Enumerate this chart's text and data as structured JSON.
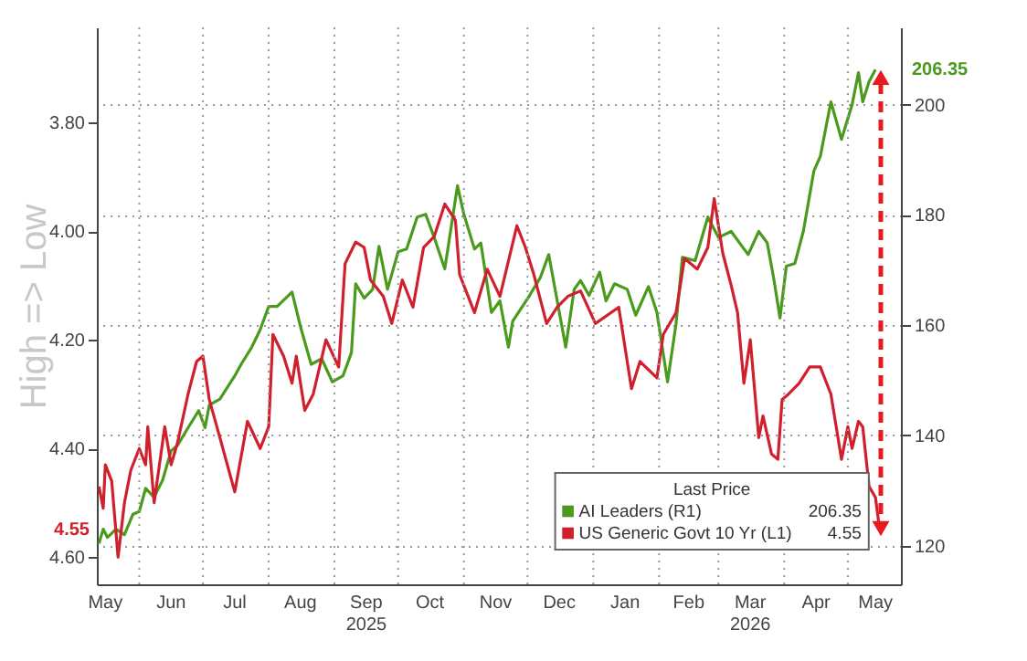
{
  "chart_data": {
    "type": "line",
    "ylabel": "High => Low",
    "legend_title": "Last Price",
    "legend": "bottom right",
    "grid": true,
    "xlim": [
      "2025-05-12",
      "2026-05-26"
    ],
    "xticks": [
      {
        "value": "2025-05-16",
        "label": "May"
      },
      {
        "value": "2025-06-01",
        "label": null
      },
      {
        "value": "2025-06-16",
        "label": "Jun"
      },
      {
        "value": "2025-07-01",
        "label": null
      },
      {
        "value": "2025-07-16",
        "label": "Jul"
      },
      {
        "value": "2025-08-01",
        "label": null
      },
      {
        "value": "2025-08-16",
        "label": "Aug"
      },
      {
        "value": "2025-09-01",
        "label": null
      },
      {
        "value": "2025-09-16",
        "label": "Sep\n2025"
      },
      {
        "value": "2025-10-01",
        "label": null
      },
      {
        "value": "2025-10-16",
        "label": "Oct"
      },
      {
        "value": "2025-11-01",
        "label": null
      },
      {
        "value": "2025-11-16",
        "label": "Nov"
      },
      {
        "value": "2025-12-01",
        "label": null
      },
      {
        "value": "2025-12-16",
        "label": "Dec"
      },
      {
        "value": "2026-01-01",
        "label": null
      },
      {
        "value": "2026-01-16",
        "label": "Jan"
      },
      {
        "value": "2026-02-01",
        "label": null
      },
      {
        "value": "2026-02-15",
        "label": "Feb"
      },
      {
        "value": "2026-03-01",
        "label": null
      },
      {
        "value": "2026-03-16",
        "label": "Mar\n2026"
      },
      {
        "value": "2026-04-01",
        "label": null
      },
      {
        "value": "2026-04-16",
        "label": "Apr"
      },
      {
        "value": "2026-05-01",
        "label": null
      },
      {
        "value": "2026-05-14",
        "label": "May"
      }
    ],
    "ylim": [
      4.65,
      3.625
    ],
    "yticks": [
      {
        "value": 3.8,
        "label": "3.80"
      },
      {
        "value": 4.0,
        "label": "4.00"
      },
      {
        "value": 4.2,
        "label": "4.20"
      },
      {
        "value": 4.4,
        "label": "4.40"
      },
      {
        "value": 4.6,
        "label": "4.60"
      }
    ],
    "y2lim": [
      113,
      214
    ],
    "y2ticks": [
      120,
      140,
      160,
      180,
      200
    ],
    "annotations": [
      "206.35",
      "4.55"
    ],
    "series": [
      {
        "name": "AI Leaders (R1)",
        "color": "#4a9a1e",
        "axis": "y2",
        "x": [
          "2025-05-13",
          "2025-05-15",
          "2025-05-17",
          "2025-05-21",
          "2025-05-25",
          "2025-05-29",
          "2025-06-01",
          "2025-06-04",
          "2025-06-08",
          "2025-06-12",
          "2025-06-16",
          "2025-06-19",
          "2025-06-24",
          "2025-06-29",
          "2025-07-02",
          "2025-07-04",
          "2025-07-09",
          "2025-07-16",
          "2025-07-19",
          "2025-07-24",
          "2025-07-28",
          "2025-08-01",
          "2025-08-05",
          "2025-08-12",
          "2025-08-16",
          "2025-08-21",
          "2025-08-26",
          "2025-08-31",
          "2025-09-05",
          "2025-09-09",
          "2025-09-11",
          "2025-09-15",
          "2025-09-19",
          "2025-09-22",
          "2025-09-26",
          "2025-10-01",
          "2025-10-05",
          "2025-10-10",
          "2025-10-14",
          "2025-10-18",
          "2025-10-23",
          "2025-10-29",
          "2025-11-01",
          "2025-11-06",
          "2025-11-09",
          "2025-11-14",
          "2025-11-18",
          "2025-11-22",
          "2025-11-24",
          "2025-12-02",
          "2025-12-07",
          "2025-12-11",
          "2025-12-15",
          "2025-12-19",
          "2025-12-23",
          "2025-12-26",
          "2025-12-30",
          "2026-01-04",
          "2026-01-07",
          "2026-01-11",
          "2026-01-17",
          "2026-01-21",
          "2026-01-27",
          "2026-01-31",
          "2026-02-05",
          "2026-02-09",
          "2026-02-12",
          "2026-02-18",
          "2026-02-24",
          "2026-03-01",
          "2026-03-07",
          "2026-03-15",
          "2026-03-20",
          "2026-03-24",
          "2026-03-27",
          "2026-03-30",
          "2026-04-02",
          "2026-04-06",
          "2026-04-10",
          "2026-04-15",
          "2026-04-18",
          "2026-04-23",
          "2026-04-28",
          "2026-05-03",
          "2026-05-06",
          "2026-05-08",
          "2026-05-11",
          "2026-05-14"
        ],
        "values": [
          120.4,
          123.0,
          121.5,
          123,
          122,
          125.7,
          126.2,
          130.4,
          128.8,
          131.9,
          137.2,
          138.2,
          141.4,
          144.5,
          141.4,
          145.5,
          146.6,
          150.8,
          152.9,
          156.0,
          159.2,
          163.4,
          163.4,
          166.0,
          159.7,
          152.9,
          153.9,
          149.7,
          150.8,
          155.0,
          167.5,
          164.9,
          166.5,
          174.3,
          166.5,
          173.3,
          173.8,
          179.6,
          180.1,
          175.9,
          170.2,
          185.3,
          180.1,
          173.8,
          174.9,
          162.3,
          164.4,
          156.0,
          160.7,
          165.4,
          168.6,
          172.8,
          164.4,
          156.0,
          166.5,
          168.1,
          165.4,
          169.6,
          164.4,
          167.5,
          166.5,
          161.8,
          167.0,
          162.3,
          149.7,
          160.2,
          172.3,
          171.7,
          179.6,
          175.9,
          177.0,
          172.8,
          177.0,
          174.9,
          168.6,
          161.3,
          170.7,
          171.2,
          177.0,
          188.0,
          190.6,
          200.5,
          193.7,
          200.0,
          205.8,
          200.5,
          204.2,
          206.35
        ]
      },
      {
        "name": "US Generic Govt 10 Yr (L1)",
        "color": "#d0202e",
        "x": [
          "2025-05-13",
          "2025-05-15",
          "2025-05-16",
          "2025-05-19",
          "2025-05-22",
          "2025-05-25",
          "2025-05-28",
          "2025-06-01",
          "2025-06-04",
          "2025-06-05",
          "2025-06-08",
          "2025-06-13",
          "2025-06-16",
          "2025-06-19",
          "2025-06-24",
          "2025-06-28",
          "2025-07-01",
          "2025-07-04",
          "2025-07-09",
          "2025-07-16",
          "2025-07-22",
          "2025-07-28",
          "2025-08-01",
          "2025-08-03",
          "2025-08-08",
          "2025-08-12",
          "2025-08-14",
          "2025-08-18",
          "2025-08-22",
          "2025-08-28",
          "2025-09-03",
          "2025-09-06",
          "2025-09-11",
          "2025-09-15",
          "2025-09-18",
          "2025-09-24",
          "2025-09-28",
          "2025-10-03",
          "2025-10-08",
          "2025-10-13",
          "2025-10-18",
          "2025-10-23",
          "2025-10-28",
          "2025-10-30",
          "2025-11-06",
          "2025-11-12",
          "2025-11-18",
          "2025-11-26",
          "2025-11-30",
          "2025-12-04",
          "2025-12-10",
          "2025-12-15",
          "2025-12-20",
          "2025-12-26",
          "2026-01-02",
          "2026-01-13",
          "2026-01-19",
          "2026-01-23",
          "2026-01-31",
          "2026-02-03",
          "2026-02-09",
          "2026-02-13",
          "2026-02-19",
          "2026-02-24",
          "2026-02-27",
          "2026-03-03",
          "2026-03-07",
          "2026-03-10",
          "2026-03-13",
          "2026-03-16",
          "2026-03-20",
          "2026-03-22",
          "2026-03-26",
          "2026-03-29",
          "2026-03-31",
          "2026-04-03",
          "2026-04-08",
          "2026-04-13",
          "2026-04-18",
          "2026-04-23",
          "2026-04-28",
          "2026-05-01",
          "2026-05-03",
          "2026-05-06",
          "2026-05-08",
          "2026-05-11",
          "2026-05-14",
          "2026-05-16"
        ],
        "values": [
          4.47,
          4.51,
          4.43,
          4.46,
          4.6,
          4.5,
          4.44,
          4.4,
          4.43,
          4.36,
          4.5,
          4.36,
          4.43,
          4.39,
          4.3,
          4.24,
          4.23,
          4.31,
          4.38,
          4.48,
          4.35,
          4.4,
          4.36,
          4.19,
          4.23,
          4.28,
          4.23,
          4.33,
          4.3,
          4.2,
          4.25,
          4.06,
          4.02,
          4.03,
          4.09,
          4.12,
          4.17,
          4.09,
          4.14,
          4.03,
          4.01,
          3.95,
          3.98,
          4.08,
          4.15,
          4.07,
          4.12,
          3.99,
          4.03,
          4.08,
          4.17,
          4.14,
          4.12,
          4.11,
          4.17,
          4.14,
          4.29,
          4.24,
          4.27,
          4.19,
          4.15,
          4.05,
          4.07,
          4.03,
          3.94,
          4.04,
          4.1,
          4.15,
          4.28,
          4.2,
          4.38,
          4.34,
          4.41,
          4.42,
          4.31,
          4.3,
          4.28,
          4.25,
          4.25,
          4.3,
          4.42,
          4.36,
          4.4,
          4.35,
          4.36,
          4.47,
          4.49,
          4.55
        ]
      }
    ]
  }
}
